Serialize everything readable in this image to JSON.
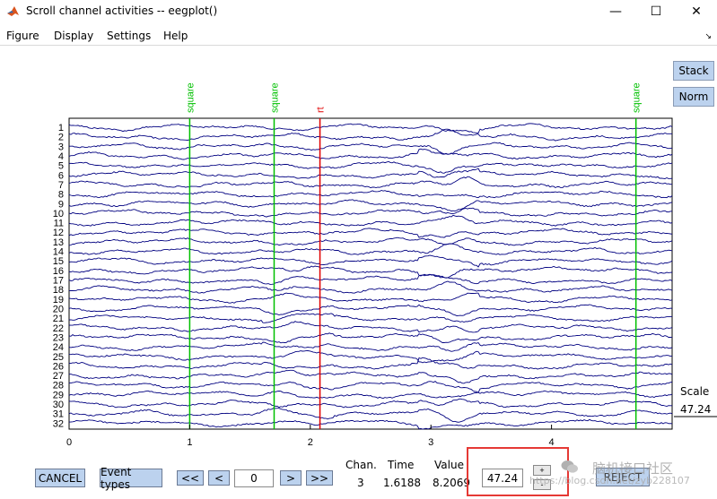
{
  "window": {
    "title": "Scroll channel activities -- eegplot()",
    "minimize_glyph": "—",
    "maximize_glyph": "☐",
    "close_glyph": "✕"
  },
  "menu": {
    "items": [
      "Figure",
      "Display",
      "Settings",
      "Help"
    ],
    "dock_glyph": "↘"
  },
  "side_buttons": {
    "stack_label": "Stack",
    "norm_label": "Norm"
  },
  "plot": {
    "channels": [
      "1",
      "2",
      "3",
      "4",
      "5",
      "6",
      "7",
      "8",
      "9",
      "10",
      "11",
      "12",
      "13",
      "14",
      "15",
      "16",
      "17",
      "18",
      "19",
      "20",
      "21",
      "22",
      "23",
      "24",
      "25",
      "26",
      "27",
      "28",
      "29",
      "30",
      "31",
      "32"
    ],
    "x_ticks": [
      "0",
      "1",
      "2",
      "3",
      "4"
    ],
    "events": [
      {
        "label": "square",
        "time": 1.0,
        "color": "#00c000"
      },
      {
        "label": "square",
        "time": 1.7,
        "color": "#00c000"
      },
      {
        "label": "rt",
        "time": 2.08,
        "color": "#e00000"
      },
      {
        "label": "square",
        "time": 4.7,
        "color": "#00c000"
      }
    ],
    "trace_color": "#000080",
    "scale_label": "Scale",
    "scale_value": "47.24"
  },
  "controls": {
    "cancel_label": "CANCEL",
    "event_types_label": "Event types",
    "prev_page_label": "<<",
    "prev_label": "<",
    "time_value": "0",
    "next_label": ">",
    "next_page_label": ">>",
    "chan_header": "Chan.",
    "chan_value": "3",
    "time_header": "Time",
    "time_readout": "1.6188",
    "value_header": "Value",
    "value_readout": "8.2069",
    "scale_input": "47.24",
    "plus_label": "+",
    "minus_label": "-",
    "reject_label": "REJECT"
  },
  "watermark": {
    "text": "脑机接口社区",
    "url": "https://blog.csdn.net/zyb228107"
  }
}
